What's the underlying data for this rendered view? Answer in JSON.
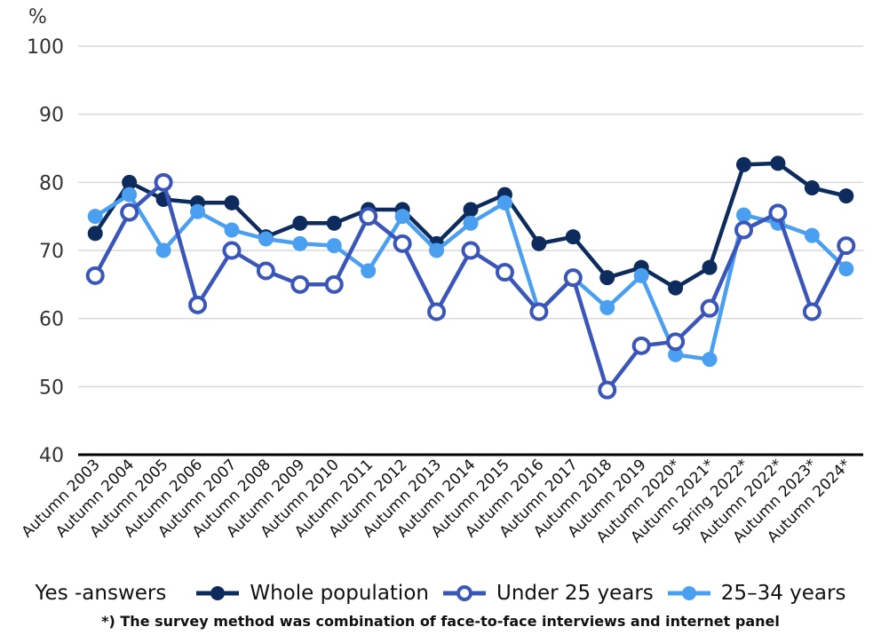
{
  "chart_data": {
    "type": "line",
    "unit_label": "%",
    "ylim": [
      40,
      100
    ],
    "yticks": [
      40,
      50,
      60,
      70,
      80,
      90,
      100
    ],
    "grid": true,
    "categories": [
      "Autumn 2003",
      "Autumn 2004",
      "Autumn 2005",
      "Autumn 2006",
      "Autumn 2007",
      "Autumn 2008",
      "Autumn 2009",
      "Autumn 2010",
      "Autumn 2011",
      "Autumn 2012",
      "Autumn 2013",
      "Autumn 2014",
      "Autumn 2015",
      "Autumn 2016",
      "Autumn 2017",
      "Autumn 2018",
      "Autumn 2019",
      "Autumn 2020*",
      "Autumn 2021*",
      "Spring 2022*",
      "Autumn 2022*",
      "Autumn 2023*",
      "Autumn 2024*"
    ],
    "series": [
      {
        "name": "Whole population",
        "color": "#0d2b5c",
        "marker": "filled",
        "values": [
          72.5,
          80,
          77.5,
          77,
          77,
          72,
          74,
          74,
          76,
          76,
          71,
          76,
          78.2,
          71,
          72,
          66,
          67.5,
          64.5,
          67.5,
          82.6,
          82.8,
          79.2,
          78
        ]
      },
      {
        "name": "Under 25 years",
        "color": "#3a56b8",
        "marker": "hollow",
        "values": [
          66.3,
          75.6,
          80,
          62,
          70,
          67,
          65,
          65,
          75,
          71,
          61,
          70,
          66.8,
          61,
          66,
          49.5,
          56,
          56.6,
          61.5,
          73,
          75.5,
          61,
          70.7
        ]
      },
      {
        "name": "25–34 years",
        "color": "#4a9ff0",
        "marker": "filled",
        "values": [
          75,
          78.2,
          70,
          75.7,
          73,
          71.7,
          71,
          70.7,
          67,
          75,
          70,
          74,
          77,
          61,
          66,
          61.6,
          66.3,
          54.7,
          54,
          75.2,
          74,
          72.2,
          67.3
        ]
      }
    ],
    "legend_title": "Yes -answers",
    "legend_position": "bottom",
    "footnote": "*) The survey method was combination of face-to-face interviews and internet panel"
  }
}
